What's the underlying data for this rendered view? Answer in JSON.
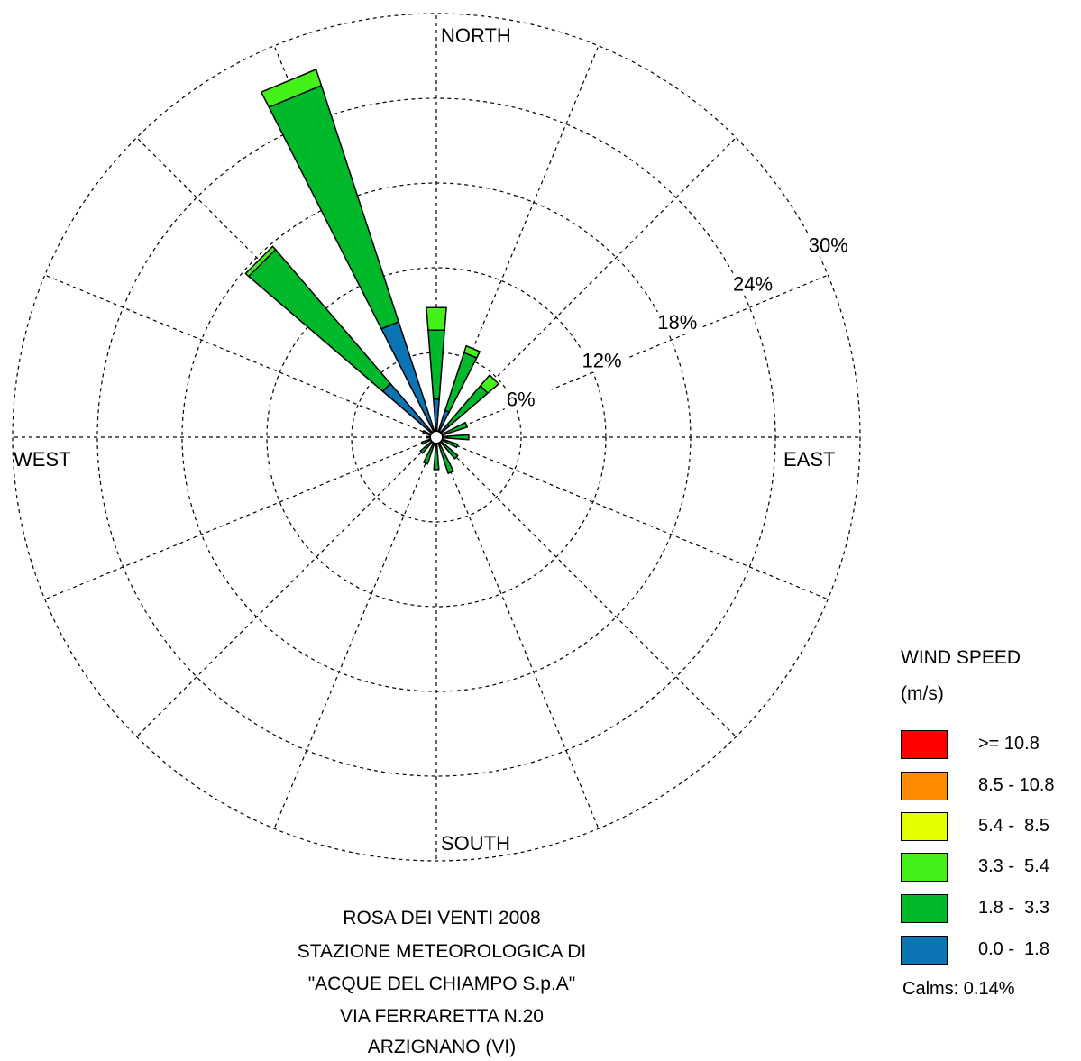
{
  "chart_data": {
    "type": "wind-rose",
    "direction_labels": {
      "north": "NORTH",
      "east": "EAST",
      "south": "SOUTH",
      "west": "WEST"
    },
    "ring_labels": [
      "6%",
      "12%",
      "18%",
      "24%",
      "30%"
    ],
    "ring_values": [
      6,
      12,
      18,
      24,
      30
    ],
    "rmax": 30,
    "legend": {
      "title": "WIND SPEED",
      "unit": "(m/s)",
      "bins": [
        {
          "label": ">= 10.8",
          "color": "#ff0000"
        },
        {
          "label": "8.5 - 10.8",
          "color": "#ff8c00"
        },
        {
          "label": "5.4 -  8.5",
          "color": "#e4ff00"
        },
        {
          "label": "3.3 -  5.4",
          "color": "#44f21a"
        },
        {
          "label": "1.8 -  3.3",
          "color": "#00b92b"
        },
        {
          "label": "0.0 -  1.8",
          "color": "#0a74b5"
        }
      ]
    },
    "calms": "Calms: 0.14%",
    "sectors": [
      {
        "direction": "N",
        "bins": [
          {
            "label": "0.0 -  1.8",
            "value": 2.7
          },
          {
            "label": "1.8 -  3.3",
            "value": 4.9
          },
          {
            "label": "3.3 -  5.4",
            "value": 1.6
          }
        ]
      },
      {
        "direction": "NNE",
        "bins": [
          {
            "label": "0.0 -  1.8",
            "value": 2.0
          },
          {
            "label": "1.8 -  3.3",
            "value": 4.3
          },
          {
            "label": "3.3 -  5.4",
            "value": 0.5
          }
        ]
      },
      {
        "direction": "NE",
        "bins": [
          {
            "label": "0.0 -  1.8",
            "value": 1.2
          },
          {
            "label": "1.8 -  3.3",
            "value": 3.6
          },
          {
            "label": "3.3 -  5.4",
            "value": 1.0
          }
        ]
      },
      {
        "direction": "ENE",
        "bins": [
          {
            "label": "0.0 -  1.8",
            "value": 0.8
          },
          {
            "label": "1.8 -  3.3",
            "value": 1.5
          }
        ]
      },
      {
        "direction": "E",
        "bins": [
          {
            "label": "0.0 -  1.8",
            "value": 0.8
          },
          {
            "label": "1.8 -  3.3",
            "value": 1.5
          }
        ]
      },
      {
        "direction": "ESE",
        "bins": [
          {
            "label": "0.0 -  1.8",
            "value": 0.7
          },
          {
            "label": "1.8 -  3.3",
            "value": 0.9
          }
        ]
      },
      {
        "direction": "SE",
        "bins": [
          {
            "label": "0.0 -  1.8",
            "value": 0.7
          },
          {
            "label": "1.8 -  3.3",
            "value": 1.3
          }
        ]
      },
      {
        "direction": "SSE",
        "bins": [
          {
            "label": "0.0 -  1.8",
            "value": 0.7
          },
          {
            "label": "1.8 -  3.3",
            "value": 2.0
          }
        ]
      },
      {
        "direction": "S",
        "bins": [
          {
            "label": "0.0 -  1.8",
            "value": 0.6
          },
          {
            "label": "1.8 -  3.3",
            "value": 1.7
          }
        ]
      },
      {
        "direction": "SSW",
        "bins": [
          {
            "label": "0.0 -  1.8",
            "value": 0.6
          },
          {
            "label": "1.8 -  3.3",
            "value": 1.4
          }
        ]
      },
      {
        "direction": "SW",
        "bins": [
          {
            "label": "0.0 -  1.8",
            "value": 0.6
          },
          {
            "label": "1.8 -  3.3",
            "value": 0.9
          }
        ]
      },
      {
        "direction": "WSW",
        "bins": [
          {
            "label": "0.0 -  1.8",
            "value": 0.5
          },
          {
            "label": "1.8 -  3.3",
            "value": 0.6
          }
        ]
      },
      {
        "direction": "W",
        "bins": [
          {
            "label": "0.0 -  1.8",
            "value": 0.4
          },
          {
            "label": "1.8 -  3.3",
            "value": 0.3
          }
        ]
      },
      {
        "direction": "WNW",
        "bins": [
          {
            "label": "0.0 -  1.8",
            "value": 0.5
          },
          {
            "label": "1.8 -  3.3",
            "value": 0.5
          }
        ]
      },
      {
        "direction": "NW",
        "bins": [
          {
            "label": "0.0 -  1.8",
            "value": 5.0
          },
          {
            "label": "1.8 -  3.3",
            "value": 12.5
          },
          {
            "label": "3.3 -  5.4",
            "value": 0.3
          }
        ]
      },
      {
        "direction": "NNW",
        "bins": [
          {
            "label": "0.0 -  1.8",
            "value": 8.6
          },
          {
            "label": "1.8 -  3.3",
            "value": 17.6
          },
          {
            "label": "3.3 -  5.4",
            "value": 1.2
          }
        ]
      }
    ]
  },
  "caption": {
    "line1": "ROSA DEI VENTI 2008",
    "line2": "STAZIONE METEOROLOGICA DI",
    "line3": "\"ACQUE DEL CHIAMPO S.p.A\"",
    "line4": "VIA FERRARETTA N.20",
    "line5": "ARZIGNANO (VI)"
  }
}
